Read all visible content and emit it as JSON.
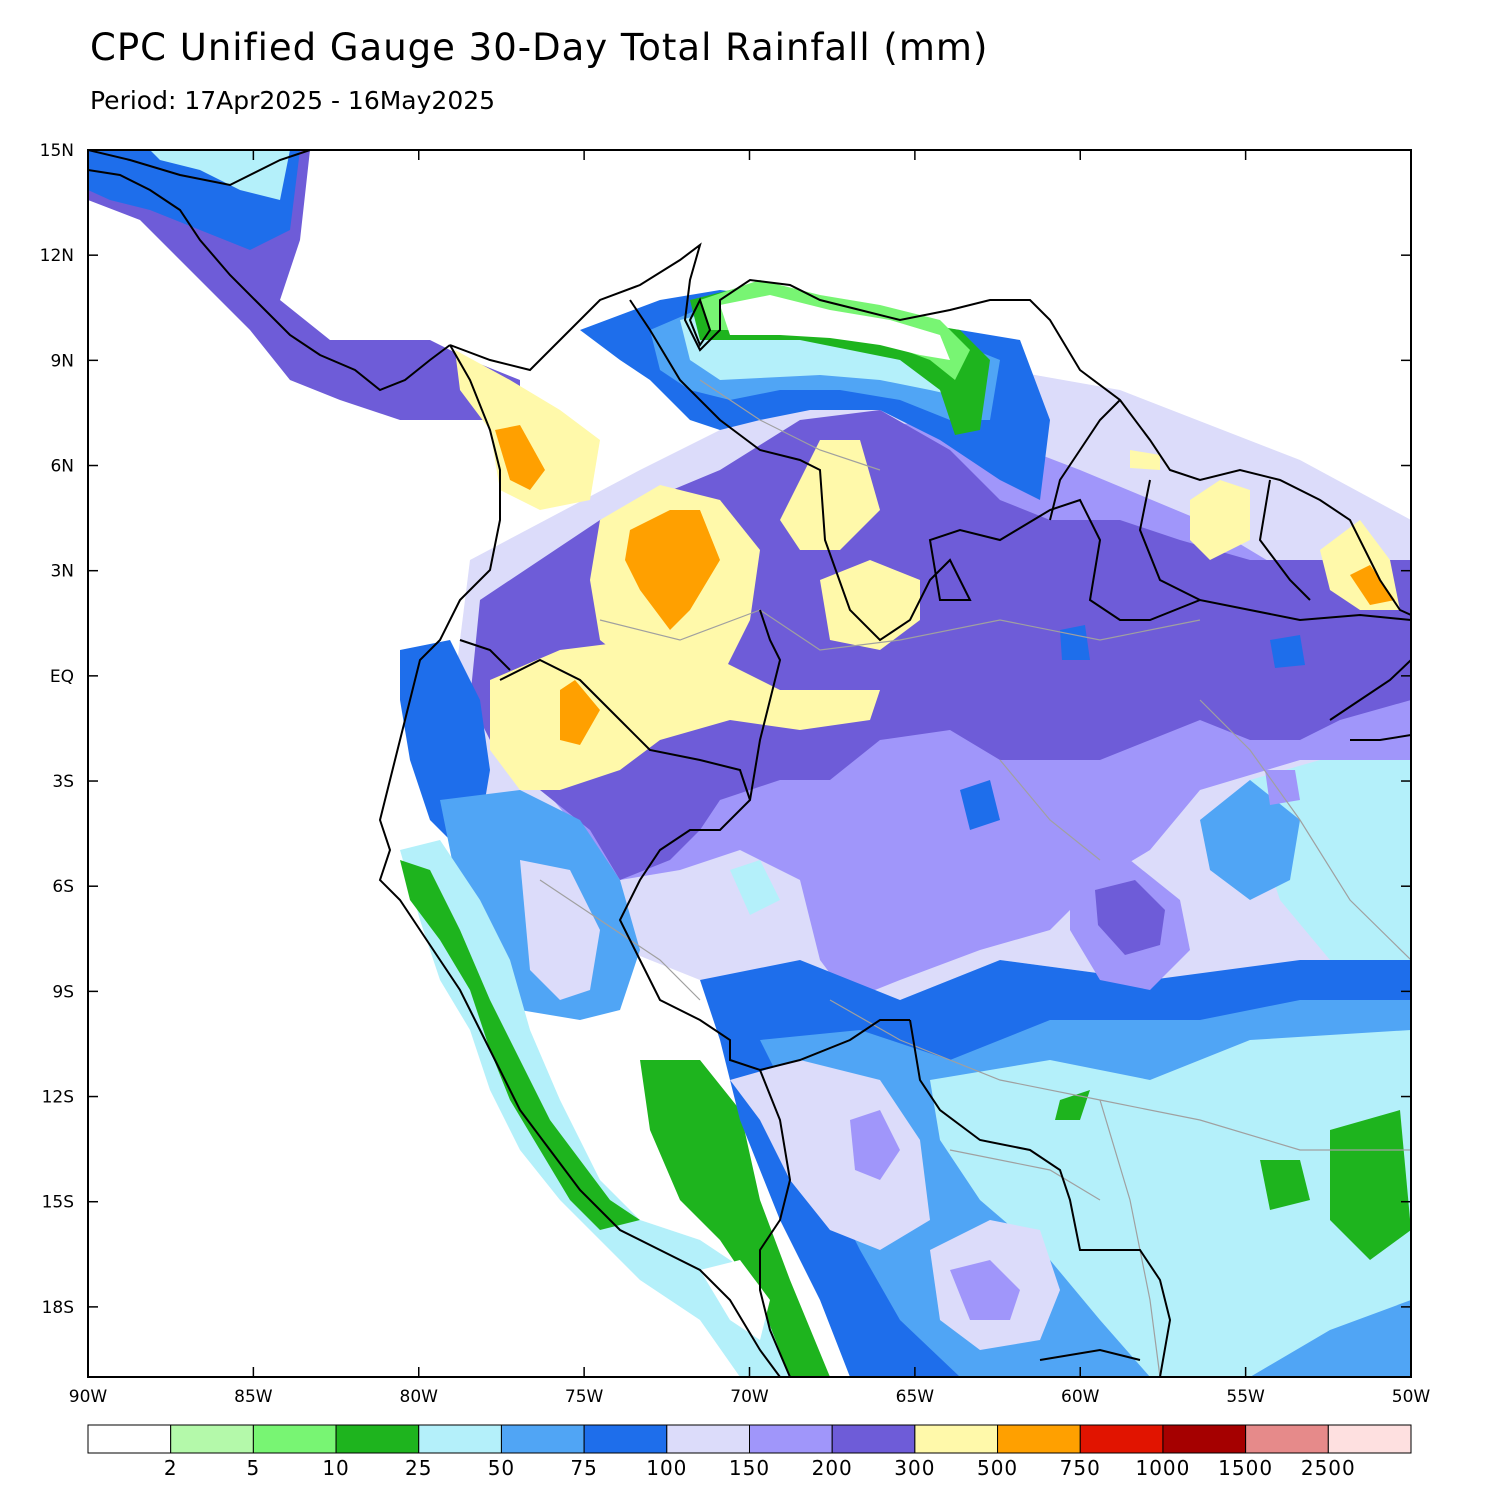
{
  "title": "CPC Unified Gauge 30-Day Total Rainfall (mm)",
  "subtitle": "Period: 17Apr2025 - 16May2025",
  "axes": {
    "lat_ticks": [
      {
        "label": "15N",
        "value": 15
      },
      {
        "label": "12N",
        "value": 12
      },
      {
        "label": "9N",
        "value": 9
      },
      {
        "label": "6N",
        "value": 6
      },
      {
        "label": "3N",
        "value": 3
      },
      {
        "label": "EQ",
        "value": 0
      },
      {
        "label": "3S",
        "value": -3
      },
      {
        "label": "6S",
        "value": -6
      },
      {
        "label": "9S",
        "value": -9
      },
      {
        "label": "12S",
        "value": -12
      },
      {
        "label": "15S",
        "value": -15
      },
      {
        "label": "18S",
        "value": -18
      }
    ],
    "lon_ticks": [
      {
        "label": "90W",
        "value": -90
      },
      {
        "label": "85W",
        "value": -85
      },
      {
        "label": "80W",
        "value": -80
      },
      {
        "label": "75W",
        "value": -75
      },
      {
        "label": "70W",
        "value": -70
      },
      {
        "label": "65W",
        "value": -65
      },
      {
        "label": "60W",
        "value": -60
      },
      {
        "label": "55W",
        "value": -55
      },
      {
        "label": "50W",
        "value": -50
      }
    ],
    "lat_range": [
      -20,
      15
    ],
    "lon_range": [
      -90,
      -50
    ]
  },
  "colorbar": {
    "colors": [
      "#ffffff",
      "#b4f9aa",
      "#78f573",
      "#1eb41e",
      "#b4f0fa",
      "#50a5f5",
      "#1e6eeb",
      "#dcdcfa",
      "#a096fa",
      "#6e5cd8",
      "#fff9aa",
      "#ffa000",
      "#e11400",
      "#a50000",
      "#e68a8a",
      "#fee0e0"
    ],
    "labels": [
      "2",
      "5",
      "10",
      "25",
      "50",
      "75",
      "100",
      "150",
      "200",
      "300",
      "500",
      "750",
      "1000",
      "1500",
      "2500"
    ]
  },
  "legend": {
    "land": "#ffffff",
    "coast": "#000000",
    "border": "#a0a0a0"
  }
}
